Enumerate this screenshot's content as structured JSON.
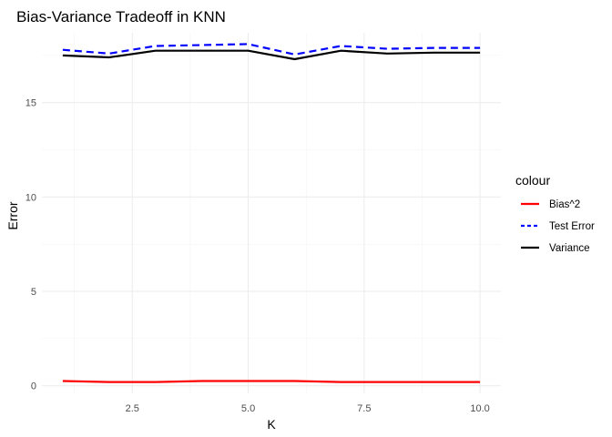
{
  "chart_data": {
    "type": "line",
    "title": "Bias-Variance Tradeoff in KNN",
    "xlabel": "K",
    "ylabel": "Error",
    "x": [
      1,
      2,
      3,
      4,
      5,
      6,
      7,
      8,
      9,
      10
    ],
    "xlim": [
      0.55,
      10.45
    ],
    "ylim": [
      -0.4,
      18.7
    ],
    "x_ticks": [
      2.5,
      5.0,
      7.5,
      10.0
    ],
    "x_tick_labels": [
      "2.5",
      "5.0",
      "7.5",
      "10.0"
    ],
    "y_ticks": [
      0,
      5,
      10,
      15
    ],
    "y_tick_labels": [
      "0",
      "5",
      "10",
      "15"
    ],
    "grid": true,
    "legend": {
      "title": "colour",
      "position": "right",
      "entries": [
        "Bias^2",
        "Test Error",
        "Variance"
      ]
    },
    "series": [
      {
        "name": "Bias^2",
        "color": "#ff0000",
        "linestyle": "solid",
        "values": [
          0.25,
          0.2,
          0.2,
          0.25,
          0.25,
          0.25,
          0.2,
          0.2,
          0.2,
          0.2
        ]
      },
      {
        "name": "Test Error",
        "color": "#0000ff",
        "linestyle": "dashed",
        "values": [
          17.8,
          17.6,
          18.0,
          18.05,
          18.1,
          17.55,
          18.0,
          17.85,
          17.9,
          17.9
        ]
      },
      {
        "name": "Variance",
        "color": "#000000",
        "linestyle": "solid",
        "values": [
          17.5,
          17.4,
          17.75,
          17.75,
          17.75,
          17.3,
          17.75,
          17.6,
          17.65,
          17.65
        ]
      }
    ]
  }
}
